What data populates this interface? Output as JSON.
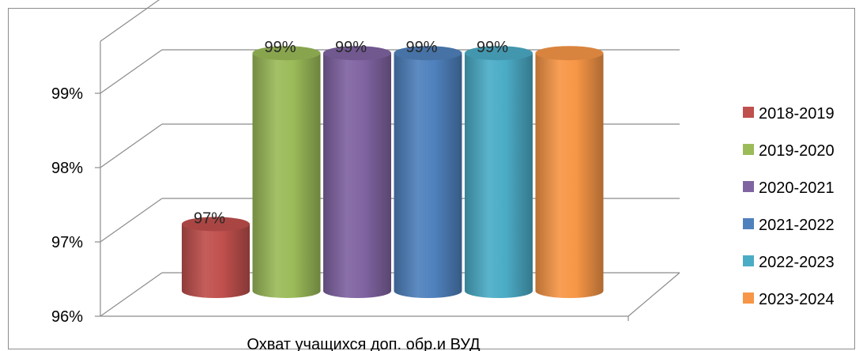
{
  "chart_data": {
    "type": "bar",
    "title": "",
    "xlabel": "",
    "ylabel": "",
    "categories": [
      "Охват учащихся доп. обр.и ВУД"
    ],
    "ylim": [
      96,
      99.7
    ],
    "yticks": [
      "96%",
      "97%",
      "98%",
      "99%"
    ],
    "grid": true,
    "legend_position": "right",
    "series": [
      {
        "name": "2018-2019",
        "values": [
          96.9
        ],
        "label": "97%",
        "color": "#c0504d"
      },
      {
        "name": "2019-2020",
        "values": [
          99.2
        ],
        "label": "99%",
        "color": "#9bbb59"
      },
      {
        "name": "2020-2021",
        "values": [
          99.2
        ],
        "label": "99%",
        "color": "#8064a2"
      },
      {
        "name": "2021-2022",
        "values": [
          99.2
        ],
        "label": "99%",
        "color": "#4f81bd"
      },
      {
        "name": "2022-2023",
        "values": [
          99.2
        ],
        "label": "99%",
        "color": "#4bacc6"
      },
      {
        "name": "2023-2024",
        "values": [
          99.2
        ],
        "label": "",
        "color": "#f79646"
      }
    ]
  }
}
